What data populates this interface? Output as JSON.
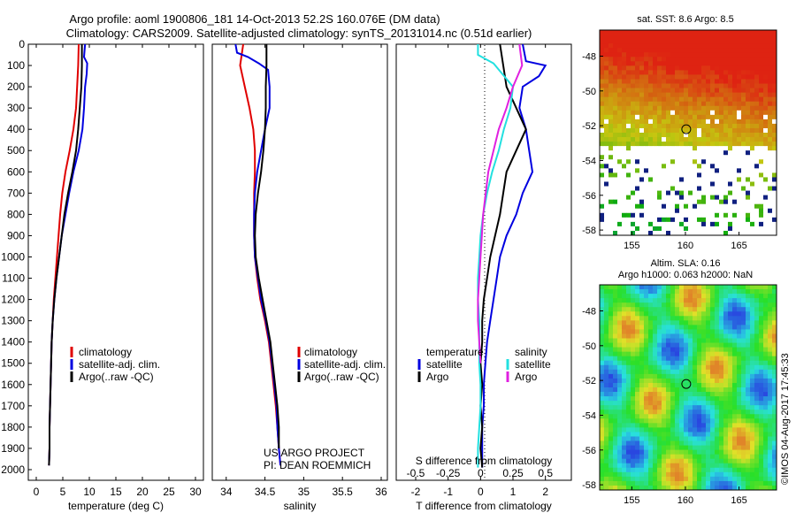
{
  "title": {
    "line1": "Argo profile: aoml 1900806_181 14-Oct-2013 52.2S 160.076E (DM data)",
    "line2": "Climatology: CARS2009. Satellite-adjusted climatology: synTS_20131014.nc (0.51d earlier)"
  },
  "footer": {
    "project": "US ARGO PROJECT",
    "pi": "PI: DEAN ROEMMICH"
  },
  "watermark": "©IMOS 04-Aug-2017 17:45:33",
  "colors": {
    "climatology": "#e00000",
    "satellite": "#0000e0",
    "argo": "#000000",
    "sat_salinity": "#22e0e0",
    "argo_salinity": "#e020e0"
  },
  "chart_data": [
    {
      "type": "line",
      "panel": "temperature",
      "xlabel": "temperature (deg C)",
      "x_ticks": [
        "0",
        "5",
        "10",
        "15",
        "20",
        "25",
        "30"
      ],
      "xlim": [
        -1.5,
        31.5
      ],
      "y_ticks": [
        "0",
        "100",
        "200",
        "300",
        "400",
        "500",
        "600",
        "700",
        "800",
        "900",
        "1000",
        "1100",
        "1200",
        "1300",
        "1400",
        "1500",
        "1600",
        "1700",
        "1800",
        "1900",
        "2000"
      ],
      "ylim": [
        0,
        2050
      ],
      "legend": [
        "climatology",
        "satellite-adj. clim.",
        "Argo(..raw -QC)"
      ],
      "series": [
        {
          "name": "climatology",
          "points": [
            [
              8.0,
              0
            ],
            [
              7.9,
              100
            ],
            [
              7.7,
              200
            ],
            [
              7.5,
              300
            ],
            [
              7.0,
              400
            ],
            [
              6.3,
              500
            ],
            [
              5.5,
              600
            ],
            [
              4.9,
              700
            ],
            [
              4.5,
              800
            ],
            [
              4.2,
              900
            ],
            [
              3.9,
              1000
            ],
            [
              3.6,
              1100
            ],
            [
              3.3,
              1200
            ],
            [
              3.1,
              1300
            ],
            [
              2.9,
              1400
            ],
            [
              2.8,
              1500
            ],
            [
              2.7,
              1600
            ],
            [
              2.6,
              1700
            ],
            [
              2.5,
              1800
            ],
            [
              2.5,
              1900
            ],
            [
              2.4,
              1980
            ]
          ]
        },
        {
          "name": "satellite-adj. clim.",
          "points": [
            [
              9.2,
              0
            ],
            [
              9.0,
              60
            ],
            [
              9.6,
              90
            ],
            [
              9.5,
              140
            ],
            [
              9.2,
              200
            ],
            [
              9.0,
              300
            ],
            [
              8.7,
              400
            ],
            [
              8.0,
              500
            ],
            [
              7.0,
              600
            ],
            [
              6.2,
              700
            ],
            [
              5.5,
              800
            ],
            [
              4.8,
              900
            ],
            [
              4.3,
              1000
            ],
            [
              3.8,
              1100
            ],
            [
              3.4,
              1200
            ],
            [
              3.1,
              1300
            ],
            [
              2.9,
              1400
            ],
            [
              2.8,
              1500
            ],
            [
              2.7,
              1600
            ],
            [
              2.6,
              1700
            ],
            [
              2.5,
              1800
            ],
            [
              2.5,
              1900
            ],
            [
              2.4,
              1980
            ]
          ]
        },
        {
          "name": "Argo(..raw -QC)",
          "points": [
            [
              8.6,
              0
            ],
            [
              8.6,
              100
            ],
            [
              8.5,
              200
            ],
            [
              8.2,
              300
            ],
            [
              7.9,
              400
            ],
            [
              7.5,
              500
            ],
            [
              6.8,
              600
            ],
            [
              6.0,
              700
            ],
            [
              5.3,
              800
            ],
            [
              4.8,
              900
            ],
            [
              4.3,
              1000
            ],
            [
              3.8,
              1100
            ],
            [
              3.4,
              1200
            ],
            [
              3.1,
              1300
            ],
            [
              2.9,
              1400
            ],
            [
              2.8,
              1500
            ],
            [
              2.7,
              1600
            ],
            [
              2.6,
              1700
            ],
            [
              2.5,
              1800
            ],
            [
              2.5,
              1900
            ],
            [
              2.4,
              1980
            ]
          ]
        }
      ]
    },
    {
      "type": "line",
      "panel": "salinity",
      "xlabel": "salinity",
      "x_ticks": [
        "34",
        "34.5",
        "35",
        "35.5",
        "36"
      ],
      "xlim": [
        33.82,
        36.08
      ],
      "ylim": [
        0,
        2050
      ],
      "legend": [
        "climatology",
        "satellite-adj. clim.",
        "Argo(..raw -QC)"
      ],
      "series": [
        {
          "name": "climatology",
          "points": [
            [
              34.22,
              0
            ],
            [
              34.18,
              100
            ],
            [
              34.24,
              200
            ],
            [
              34.3,
              300
            ],
            [
              34.35,
              400
            ],
            [
              34.37,
              500
            ],
            [
              34.37,
              600
            ],
            [
              34.36,
              700
            ],
            [
              34.36,
              800
            ],
            [
              34.36,
              900
            ],
            [
              34.37,
              1000
            ],
            [
              34.4,
              1100
            ],
            [
              34.44,
              1200
            ],
            [
              34.5,
              1300
            ],
            [
              34.55,
              1400
            ],
            [
              34.58,
              1500
            ],
            [
              34.61,
              1600
            ],
            [
              34.64,
              1700
            ],
            [
              34.66,
              1800
            ],
            [
              34.68,
              1900
            ],
            [
              34.7,
              1980
            ]
          ]
        },
        {
          "name": "satellite-adj. clim.",
          "points": [
            [
              34.12,
              0
            ],
            [
              34.14,
              40
            ],
            [
              34.28,
              60
            ],
            [
              34.42,
              90
            ],
            [
              34.54,
              120
            ],
            [
              34.56,
              200
            ],
            [
              34.56,
              300
            ],
            [
              34.5,
              400
            ],
            [
              34.45,
              500
            ],
            [
              34.4,
              600
            ],
            [
              34.37,
              700
            ],
            [
              34.36,
              800
            ],
            [
              34.36,
              900
            ],
            [
              34.37,
              1000
            ],
            [
              34.41,
              1100
            ],
            [
              34.45,
              1200
            ],
            [
              34.51,
              1300
            ],
            [
              34.56,
              1400
            ],
            [
              34.59,
              1500
            ],
            [
              34.62,
              1600
            ],
            [
              34.65,
              1700
            ],
            [
              34.66,
              1800
            ],
            [
              34.68,
              1900
            ],
            [
              34.7,
              1980
            ]
          ]
        },
        {
          "name": "Argo(..raw -QC)",
          "points": [
            [
              34.52,
              0
            ],
            [
              34.52,
              100
            ],
            [
              34.51,
              200
            ],
            [
              34.51,
              300
            ],
            [
              34.5,
              400
            ],
            [
              34.48,
              500
            ],
            [
              34.45,
              600
            ],
            [
              34.41,
              700
            ],
            [
              34.38,
              800
            ],
            [
              34.37,
              900
            ],
            [
              34.38,
              1000
            ],
            [
              34.42,
              1100
            ],
            [
              34.47,
              1200
            ],
            [
              34.52,
              1300
            ],
            [
              34.57,
              1400
            ],
            [
              34.6,
              1500
            ],
            [
              34.63,
              1600
            ],
            [
              34.66,
              1700
            ],
            [
              34.68,
              1800
            ],
            [
              34.68,
              1900
            ]
          ]
        }
      ]
    },
    {
      "type": "line",
      "panel": "differences",
      "xlabel": "T difference from climatology",
      "xlabel_top": "S difference from climatology",
      "x_ticks": [
        "-2",
        "-1",
        "0",
        "1",
        "2"
      ],
      "x_ticks_top": [
        "-0.5",
        "-0.25",
        "0",
        "0.25",
        "0.5"
      ],
      "xlim": [
        -2.6,
        2.8
      ],
      "ylim": [
        0,
        2050
      ],
      "legend_titles": [
        "temperature",
        "salinity"
      ],
      "legend": [
        [
          "satellite",
          "Argo"
        ],
        [
          "satellite",
          "Argo"
        ]
      ],
      "series": [
        {
          "name": "satellite",
          "points": [
            [
              1.3,
              0
            ],
            [
              1.4,
              80
            ],
            [
              2.0,
              100
            ],
            [
              1.8,
              150
            ],
            [
              1.3,
              200
            ],
            [
              1.2,
              300
            ],
            [
              1.4,
              400
            ],
            [
              1.5,
              500
            ],
            [
              1.6,
              600
            ],
            [
              1.3,
              700
            ],
            [
              1.1,
              800
            ],
            [
              0.8,
              900
            ],
            [
              0.6,
              1000
            ],
            [
              0.5,
              1100
            ],
            [
              0.4,
              1200
            ],
            [
              0.3,
              1300
            ],
            [
              0.2,
              1400
            ],
            [
              0.15,
              1500
            ],
            [
              0.1,
              1600
            ],
            [
              0.1,
              1700
            ],
            [
              0.05,
              1800
            ],
            [
              0.05,
              1900
            ],
            [
              0.05,
              1990
            ]
          ]
        },
        {
          "name": "Argo",
          "points": [
            [
              0.6,
              0
            ],
            [
              0.7,
              100
            ],
            [
              0.8,
              200
            ],
            [
              1.1,
              300
            ],
            [
              1.4,
              400
            ],
            [
              1.1,
              500
            ],
            [
              0.8,
              600
            ],
            [
              0.7,
              700
            ],
            [
              0.6,
              800
            ],
            [
              0.45,
              900
            ],
            [
              0.3,
              1000
            ],
            [
              0.2,
              1100
            ],
            [
              0.1,
              1200
            ],
            [
              0.05,
              1300
            ],
            [
              0.05,
              1400
            ],
            [
              0.0,
              1500
            ],
            [
              0.05,
              1600
            ],
            [
              0.0,
              1700
            ],
            [
              0.05,
              1800
            ],
            [
              0.0,
              1900
            ],
            [
              0.05,
              1990
            ]
          ]
        },
        {
          "name": "satellite",
          "points": [
            [
              -0.02,
              0
            ],
            [
              -0.02,
              50
            ],
            [
              0.1,
              90
            ],
            [
              0.25,
              200
            ],
            [
              0.23,
              300
            ],
            [
              0.18,
              400
            ],
            [
              0.14,
              500
            ],
            [
              0.09,
              600
            ],
            [
              0.05,
              700
            ],
            [
              0.02,
              800
            ],
            [
              0.0,
              900
            ],
            [
              -0.01,
              1000
            ],
            [
              -0.02,
              1100
            ],
            [
              -0.02,
              1200
            ],
            [
              -0.01,
              1300
            ],
            [
              -0.01,
              1400
            ],
            [
              -0.01,
              1500
            ],
            [
              0.0,
              1600
            ],
            [
              0.0,
              1700
            ],
            [
              -0.01,
              1800
            ],
            [
              -0.02,
              1900
            ],
            [
              -0.02,
              1990
            ]
          ]
        },
        {
          "name": "Argo",
          "points": [
            [
              0.3,
              0
            ],
            [
              0.32,
              100
            ],
            [
              0.25,
              200
            ],
            [
              0.2,
              300
            ],
            [
              0.14,
              400
            ],
            [
              0.1,
              500
            ],
            [
              0.06,
              600
            ],
            [
              0.04,
              700
            ],
            [
              0.02,
              800
            ],
            [
              0.01,
              900
            ],
            [
              0.0,
              1000
            ],
            [
              -0.01,
              1100
            ],
            [
              -0.02,
              1200
            ],
            [
              -0.02,
              1300
            ],
            [
              -0.01,
              1400
            ],
            [
              0.0,
              1500
            ]
          ]
        }
      ]
    },
    {
      "type": "heatmap",
      "panel": "sst_map",
      "title": "sat. SST: 8.6  Argo: 8.5",
      "x_ticks": [
        "155",
        "160",
        "165"
      ],
      "y_ticks": [
        "-48",
        "-50",
        "-52",
        "-54",
        "-56",
        "-58"
      ],
      "xlim": [
        152,
        168.5
      ],
      "ylim": [
        -58.3,
        -46.5
      ],
      "marker": {
        "lon": 160.08,
        "lat": -52.2
      }
    },
    {
      "type": "heatmap",
      "panel": "sla_map",
      "title": "Altim. SLA: 0.16",
      "subtitle": "Argo h1000: 0.063 h2000: NaN",
      "x_ticks": [
        "155",
        "160",
        "165"
      ],
      "y_ticks": [
        "-48",
        "-50",
        "-52",
        "-54",
        "-56",
        "-58"
      ],
      "xlim": [
        152,
        168.5
      ],
      "ylim": [
        -58.3,
        -46.5
      ],
      "marker": {
        "lon": 160.08,
        "lat": -52.2
      }
    }
  ]
}
